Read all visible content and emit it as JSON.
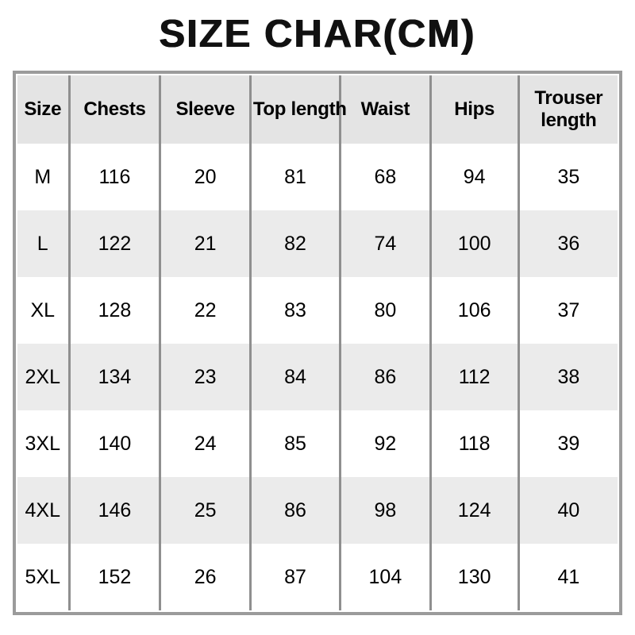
{
  "title": "SIZE CHAR(CM)",
  "table": {
    "headers": [
      "Size",
      "Chests",
      "Sleeve",
      "Top length",
      "Waist",
      "Hips",
      "Trouser length"
    ],
    "rows": [
      [
        "M",
        "116",
        "20",
        "81",
        "68",
        "94",
        "35"
      ],
      [
        "L",
        "122",
        "21",
        "82",
        "74",
        "100",
        "36"
      ],
      [
        "XL",
        "128",
        "22",
        "83",
        "80",
        "106",
        "37"
      ],
      [
        "2XL",
        "134",
        "23",
        "84",
        "86",
        "112",
        "38"
      ],
      [
        "3XL",
        "140",
        "24",
        "85",
        "92",
        "118",
        "39"
      ],
      [
        "4XL",
        "146",
        "25",
        "86",
        "98",
        "124",
        "40"
      ],
      [
        "5XL",
        "152",
        "26",
        "87",
        "104",
        "130",
        "41"
      ]
    ]
  },
  "chart_data": {
    "type": "table",
    "title": "SIZE CHAR(CM)",
    "unit": "cm",
    "columns": [
      "Size",
      "Chests",
      "Sleeve",
      "Top length",
      "Waist",
      "Hips",
      "Trouser length"
    ],
    "rows": [
      {
        "size": "M",
        "chests": 116,
        "sleeve": 20,
        "top_length": 81,
        "waist": 68,
        "hips": 94,
        "trouser_length": 35
      },
      {
        "size": "L",
        "chests": 122,
        "sleeve": 21,
        "top_length": 82,
        "waist": 74,
        "hips": 100,
        "trouser_length": 36
      },
      {
        "size": "XL",
        "chests": 128,
        "sleeve": 22,
        "top_length": 83,
        "waist": 80,
        "hips": 106,
        "trouser_length": 37
      },
      {
        "size": "2XL",
        "chests": 134,
        "sleeve": 23,
        "top_length": 84,
        "waist": 86,
        "hips": 112,
        "trouser_length": 38
      },
      {
        "size": "3XL",
        "chests": 140,
        "sleeve": 24,
        "top_length": 85,
        "waist": 92,
        "hips": 118,
        "trouser_length": 39
      },
      {
        "size": "4XL",
        "chests": 146,
        "sleeve": 25,
        "top_length": 86,
        "waist": 98,
        "hips": 124,
        "trouser_length": 40
      },
      {
        "size": "5XL",
        "chests": 152,
        "sleeve": 26,
        "top_length": 87,
        "waist": 104,
        "hips": 130,
        "trouser_length": 41
      }
    ]
  },
  "colors": {
    "background": "#ffffff",
    "header_bg": "#e4e4e4",
    "alt_row_bg": "#ebebeb",
    "table_border": "#9b9b9b",
    "cell_divider": "#8f8f8f",
    "text": "#000000"
  }
}
